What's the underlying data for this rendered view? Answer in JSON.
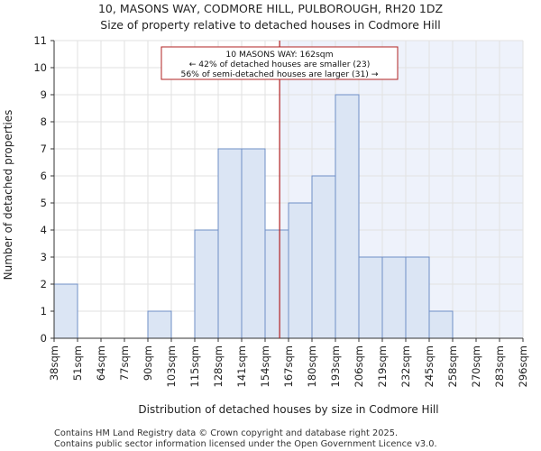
{
  "chart_data": {
    "type": "bar",
    "title": "10, MASONS WAY, CODMORE HILL, PULBOROUGH, RH20 1DZ",
    "subtitle": "Size of property relative to detached houses in Codmore Hill",
    "xlabel": "Distribution of detached houses by size in Codmore Hill",
    "ylabel": "Number of detached properties",
    "bin_edges": [
      "38sqm",
      "51sqm",
      "64sqm",
      "77sqm",
      "90sqm",
      "103sqm",
      "115sqm",
      "128sqm",
      "141sqm",
      "154sqm",
      "167sqm",
      "180sqm",
      "193sqm",
      "206sqm",
      "219sqm",
      "232sqm",
      "245sqm",
      "258sqm",
      "270sqm",
      "283sqm",
      "296sqm"
    ],
    "values": [
      2,
      0,
      0,
      0,
      1,
      0,
      4,
      7,
      7,
      4,
      5,
      6,
      9,
      3,
      3,
      3,
      1,
      0,
      0,
      0
    ],
    "ylim": [
      0,
      11
    ],
    "yticks": [
      "0",
      "1",
      "2",
      "3",
      "4",
      "5",
      "6",
      "7",
      "8",
      "9",
      "10",
      "11"
    ],
    "property_size_bin_position": 9.62,
    "property_line_color": "#b22222",
    "bar_fill_color": "#dbe5f4",
    "bar_stroke_color": "#6f8fc6",
    "shade_color": "#eef2fb",
    "annotation": {
      "line1": "10 MASONS WAY: 162sqm",
      "line2": "← 42% of detached houses are smaller (23)",
      "line3": "56% of semi-detached houses are larger (31) →"
    }
  },
  "footer": {
    "line1": "Contains HM Land Registry data © Crown copyright and database right 2025.",
    "line2": "Contains public sector information licensed under the Open Government Licence v3.0."
  }
}
